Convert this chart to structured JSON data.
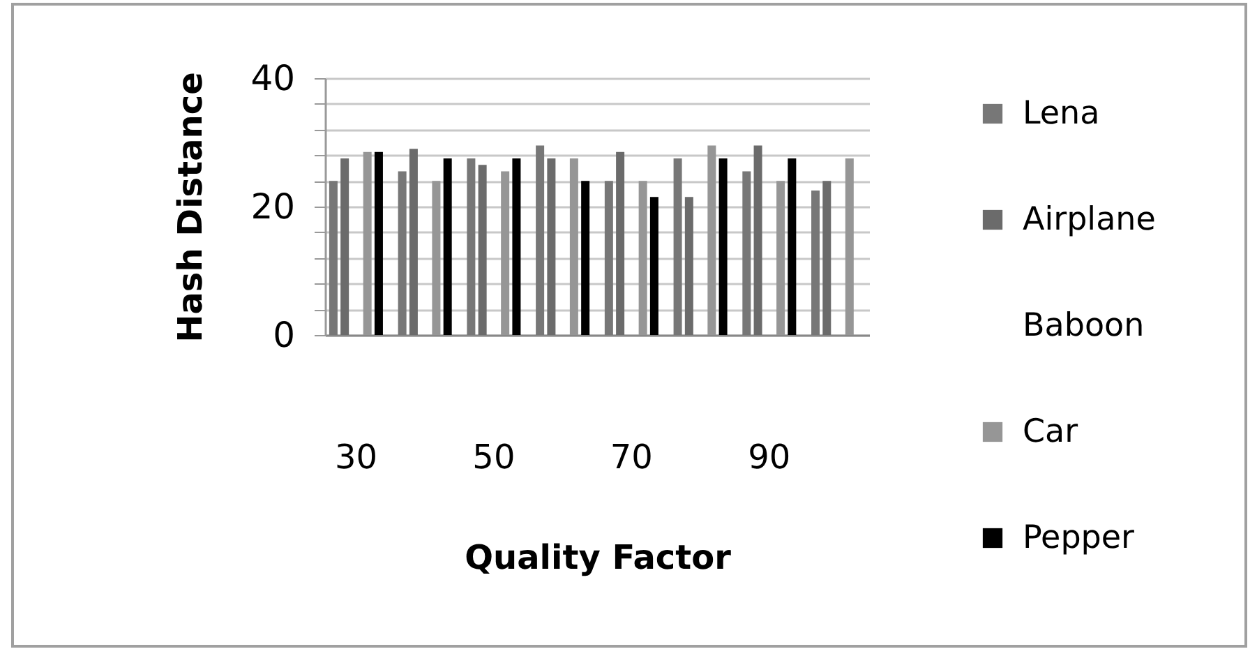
{
  "chart_data": {
    "type": "bar",
    "xlabel": "Quality Factor",
    "ylabel": "Hash Distance",
    "categories": [
      "30",
      null,
      "50",
      null,
      "70",
      null,
      "90",
      null
    ],
    "series": [
      {
        "name": "Lena",
        "color": "#777777",
        "values": [
          24,
          25.5,
          27.5,
          29.5,
          24,
          27.5,
          25.5,
          22.5
        ]
      },
      {
        "name": "Airplane",
        "color": "#6b6b6b",
        "values": [
          27.5,
          29,
          26.5,
          27.5,
          28.5,
          21.5,
          29.5,
          24
        ]
      },
      {
        "name": "Baboon",
        "values": [
          null,
          null,
          null,
          null,
          null,
          null,
          null,
          null
        ]
      },
      {
        "name": "Car",
        "color": "#969696",
        "values": [
          28.5,
          24,
          25.5,
          27.5,
          24,
          29.5,
          24,
          27.5
        ]
      },
      {
        "name": "Pepper",
        "color": "#000000",
        "values": [
          28.5,
          27.5,
          27.5,
          24,
          21.5,
          27.5,
          27.5,
          null
        ]
      }
    ],
    "ylim": [
      0,
      40
    ],
    "yticks": [
      0,
      {
        "value": 4,
        "label": null
      },
      {
        "value": 8,
        "label": null
      },
      {
        "value": 12,
        "label": null
      },
      {
        "value": 16,
        "label": null
      },
      20,
      {
        "value": 24,
        "label": null
      },
      {
        "value": 28,
        "label": null
      },
      {
        "value": 32,
        "label": null
      },
      {
        "value": 36,
        "label": null
      },
      40
    ],
    "grid": "y",
    "legend": "right"
  }
}
